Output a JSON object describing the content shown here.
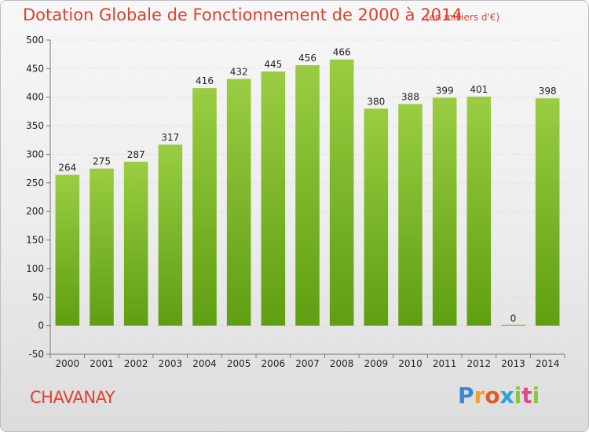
{
  "title": "Dotation Globale de Fonctionnement de 2000 à 2014",
  "unit_note": "(en milliers d'€)",
  "place": "CHAVANAY",
  "logo_text": "Proxiti",
  "colors": {
    "bar_top": "#9acd42",
    "bar_bottom": "#5f9e12",
    "title": "#e0402e",
    "grid": "#cccccc"
  },
  "chart_data": {
    "type": "bar",
    "categories": [
      "2000",
      "2001",
      "2002",
      "2003",
      "2004",
      "2005",
      "2006",
      "2007",
      "2008",
      "2009",
      "2010",
      "2011",
      "2012",
      "2013",
      "2014"
    ],
    "values": [
      264,
      275,
      287,
      317,
      416,
      432,
      445,
      456,
      466,
      380,
      388,
      399,
      401,
      0,
      398
    ],
    "ylim": [
      -50,
      500
    ],
    "yticks": [
      -50,
      0,
      50,
      100,
      150,
      200,
      250,
      300,
      350,
      400,
      450,
      500
    ],
    "grid": true,
    "legend": "none"
  }
}
